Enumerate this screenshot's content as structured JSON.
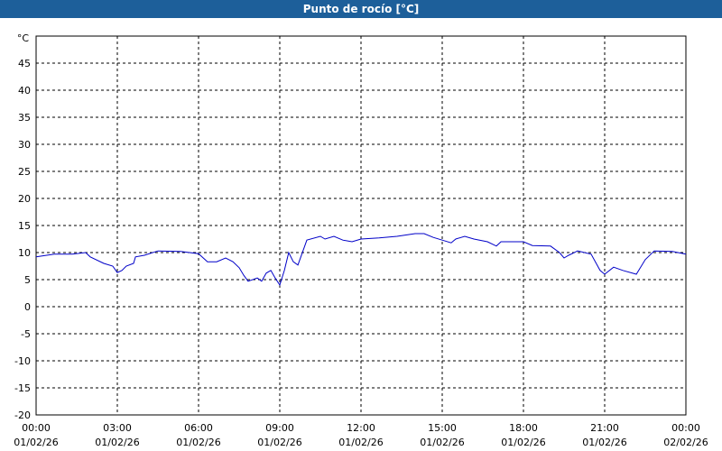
{
  "chart_data": {
    "type": "line",
    "title": "Punto de rocío [°C]",
    "y_unit": "°C",
    "ylim": [
      -20,
      50
    ],
    "yticks": [
      -20,
      -15,
      -10,
      -5,
      0,
      5,
      10,
      15,
      20,
      25,
      30,
      35,
      40,
      45
    ],
    "xlim": [
      0,
      24
    ],
    "xticks": [
      {
        "value": 0,
        "label": "00:00",
        "date": "01/02/26"
      },
      {
        "value": 3,
        "label": "03:00",
        "date": "01/02/26"
      },
      {
        "value": 6,
        "label": "06:00",
        "date": "01/02/26"
      },
      {
        "value": 9,
        "label": "09:00",
        "date": "01/02/26"
      },
      {
        "value": 12,
        "label": "12:00",
        "date": "01/02/26"
      },
      {
        "value": 15,
        "label": "15:00",
        "date": "01/02/26"
      },
      {
        "value": 18,
        "label": "18:00",
        "date": "01/02/26"
      },
      {
        "value": 21,
        "label": "21:00",
        "date": "01/02/26"
      },
      {
        "value": 24,
        "label": "00:00",
        "date": "02/02/26"
      }
    ],
    "grid": true,
    "x": [
      0,
      0.67,
      1.33,
      1.83,
      2,
      2.5,
      2.83,
      3,
      3.17,
      3.33,
      3.6,
      3.67,
      4,
      4.5,
      5.33,
      6,
      6.33,
      6.67,
      7,
      7.27,
      7.5,
      7.67,
      7.83,
      8.17,
      8.33,
      8.5,
      8.67,
      8.83,
      9,
      9.17,
      9.33,
      9.5,
      9.67,
      10,
      10.5,
      10.67,
      11,
      11.33,
      11.67,
      12,
      12.67,
      13.33,
      14,
      14.33,
      14.67,
      15,
      15.33,
      15.5,
      15.83,
      16.17,
      16.67,
      17,
      17.17,
      17.5,
      18,
      18.33,
      19,
      19.33,
      19.5,
      19.67,
      20,
      20.5,
      20.83,
      21,
      21.33,
      21.67,
      22.17,
      22.5,
      22.83,
      23.5,
      24
    ],
    "series": [
      {
        "color": "#0000c8",
        "values": [
          9.2,
          9.7,
          9.7,
          10,
          9.2,
          8,
          7.5,
          6.3,
          6.7,
          7.5,
          8,
          9.2,
          9.5,
          10.3,
          10.2,
          9.8,
          8.3,
          8.3,
          9,
          8.3,
          7.2,
          5.8,
          4.7,
          5.3,
          4.7,
          6.2,
          6.7,
          5.3,
          4,
          6.7,
          10,
          8.3,
          7.7,
          12.3,
          13,
          12.5,
          13,
          12.3,
          12,
          12.5,
          12.7,
          13,
          13.5,
          13.5,
          12.8,
          12.3,
          11.8,
          12.5,
          13,
          12.5,
          12,
          11.2,
          12,
          12,
          12,
          11.3,
          11.2,
          10,
          9,
          9.5,
          10.3,
          9.7,
          6.7,
          6,
          7.3,
          6.7,
          6,
          8.7,
          10.3,
          10.2,
          9.7
        ]
      }
    ]
  }
}
